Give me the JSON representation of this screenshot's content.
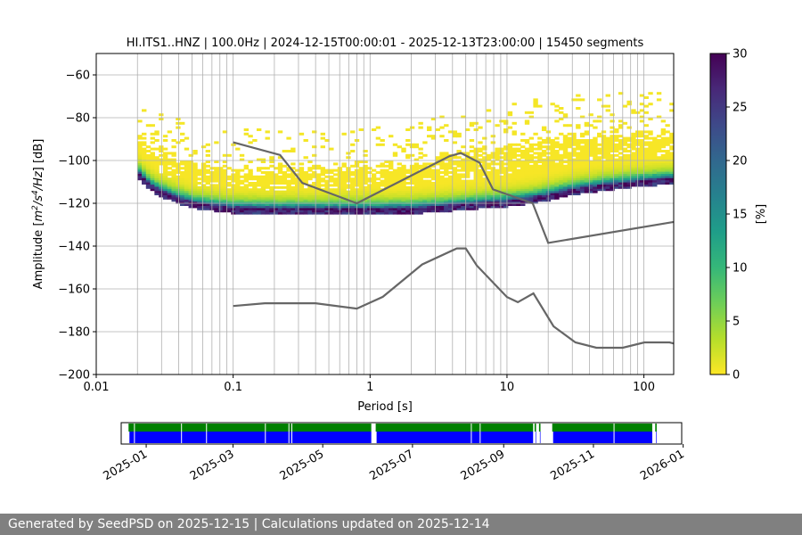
{
  "chart_data": {
    "type": "heatmap",
    "title": "HI.ITS1..HNZ | 100.0Hz | 2024-12-15T00:00:01 - 2025-12-13T23:00:00 | 15450 segments",
    "xlabel": "Period [s]",
    "ylabel_prefix": "Amplitude [",
    "ylabel_suffix": "] [dB]",
    "ylabel_unit": {
      "base1": "m",
      "exp1": "2",
      "mid": "/s",
      "exp2": "4",
      "end": "/Hz"
    },
    "x_scale": "log",
    "xlim": [
      0.01,
      165
    ],
    "ylim": [
      -200,
      -50
    ],
    "x_tick_values": [
      0.01,
      0.1,
      1,
      10,
      100
    ],
    "x_tick_labels": [
      "0.01",
      "0.1",
      "1",
      "10",
      "100"
    ],
    "y_tick_values": [
      -200,
      -180,
      -160,
      -140,
      -120,
      -100,
      -80,
      -60
    ],
    "y_tick_labels": [
      "−200",
      "−180",
      "−160",
      "−140",
      "−120",
      "−100",
      "−80",
      "−60"
    ],
    "grid": true,
    "psd_period_range": [
      0.02,
      165
    ],
    "mode_curve": [
      [
        0.02,
        -106
      ],
      [
        0.025,
        -112
      ],
      [
        0.03,
        -115
      ],
      [
        0.04,
        -118
      ],
      [
        0.05,
        -120
      ],
      [
        0.07,
        -121.5
      ],
      [
        0.1,
        -122.5
      ],
      [
        0.2,
        -123
      ],
      [
        0.5,
        -123
      ],
      [
        1,
        -123
      ],
      [
        2,
        -122.8
      ],
      [
        4,
        -121.5
      ],
      [
        6,
        -120.5
      ],
      [
        10,
        -119.5
      ],
      [
        15,
        -118
      ],
      [
        20,
        -116.5
      ],
      [
        30,
        -114
      ],
      [
        50,
        -112
      ],
      [
        80,
        -110.5
      ],
      [
        120,
        -109.5
      ],
      [
        165,
        -109
      ]
    ],
    "nhnm": [
      [
        0.1,
        -91.5
      ],
      [
        0.22,
        -97.4
      ],
      [
        0.32,
        -110.5
      ],
      [
        0.8,
        -120
      ],
      [
        3.8,
        -98
      ],
      [
        4.6,
        -96.5
      ],
      [
        6.3,
        -101
      ],
      [
        7.9,
        -113.5
      ],
      [
        15.4,
        -120
      ],
      [
        20,
        -138.5
      ],
      [
        165,
        -128.7
      ]
    ],
    "nlnm": [
      [
        0.1,
        -168
      ],
      [
        0.17,
        -166.7
      ],
      [
        0.4,
        -166.7
      ],
      [
        0.8,
        -169.2
      ],
      [
        1.24,
        -163.7
      ],
      [
        2.4,
        -148.6
      ],
      [
        4.3,
        -141.1
      ],
      [
        5,
        -141.1
      ],
      [
        6,
        -149
      ],
      [
        10,
        -163.8
      ],
      [
        12,
        -166.2
      ],
      [
        15.6,
        -162.1
      ],
      [
        21.9,
        -177.5
      ],
      [
        31.6,
        -185
      ],
      [
        45,
        -187.5
      ],
      [
        70,
        -187.5
      ],
      [
        101,
        -185
      ],
      [
        154,
        -185
      ],
      [
        165,
        -185.5
      ]
    ],
    "colorbar": {
      "label": "[%]",
      "min": 0,
      "max": 30,
      "tick_values": [
        0,
        5,
        10,
        15,
        20,
        25,
        30
      ],
      "tick_labels": [
        "0",
        "5",
        "10",
        "15",
        "20",
        "25",
        "30"
      ],
      "colormap": "viridis_r",
      "stops": [
        "#fde725",
        "#b5de2b",
        "#6ece58",
        "#35b779",
        "#1f9e89",
        "#26828e",
        "#31688e",
        "#3e4989",
        "#482878",
        "#440154"
      ]
    },
    "availability": {
      "xlim": [
        "2024-12-15",
        "2025-12-31"
      ],
      "tick_labels": [
        "2025-01",
        "2025-03",
        "2025-05",
        "2025-07",
        "2025-09",
        "2025-11",
        "2026-01"
      ],
      "tick_values": [
        "2025-01-01",
        "2025-03-01",
        "2025-05-01",
        "2025-07-01",
        "2025-09-01",
        "2025-11-01",
        "2026-01-01"
      ],
      "colors": {
        "upper": "#008000",
        "lower": "#0000ff"
      },
      "segments": [
        [
          "2024-12-20",
          "2025-06-03"
        ],
        [
          "2025-06-06",
          "2025-09-21"
        ],
        [
          "2025-09-22",
          "2025-09-23"
        ],
        [
          "2025-09-25",
          "2025-09-26"
        ],
        [
          "2025-10-04",
          "2025-12-11"
        ],
        [
          "2025-12-13",
          "2025-12-14"
        ]
      ],
      "gaps": [
        "2024-12-24",
        "2025-01-25",
        "2025-02-11",
        "2025-03-23",
        "2025-04-08",
        "2025-04-10",
        "2025-08-10",
        "2025-08-16",
        "2025-11-15"
      ]
    }
  },
  "footer": {
    "text": "Generated by SeedPSD on 2025-12-15 | Calculations updated on 2025-12-14"
  }
}
